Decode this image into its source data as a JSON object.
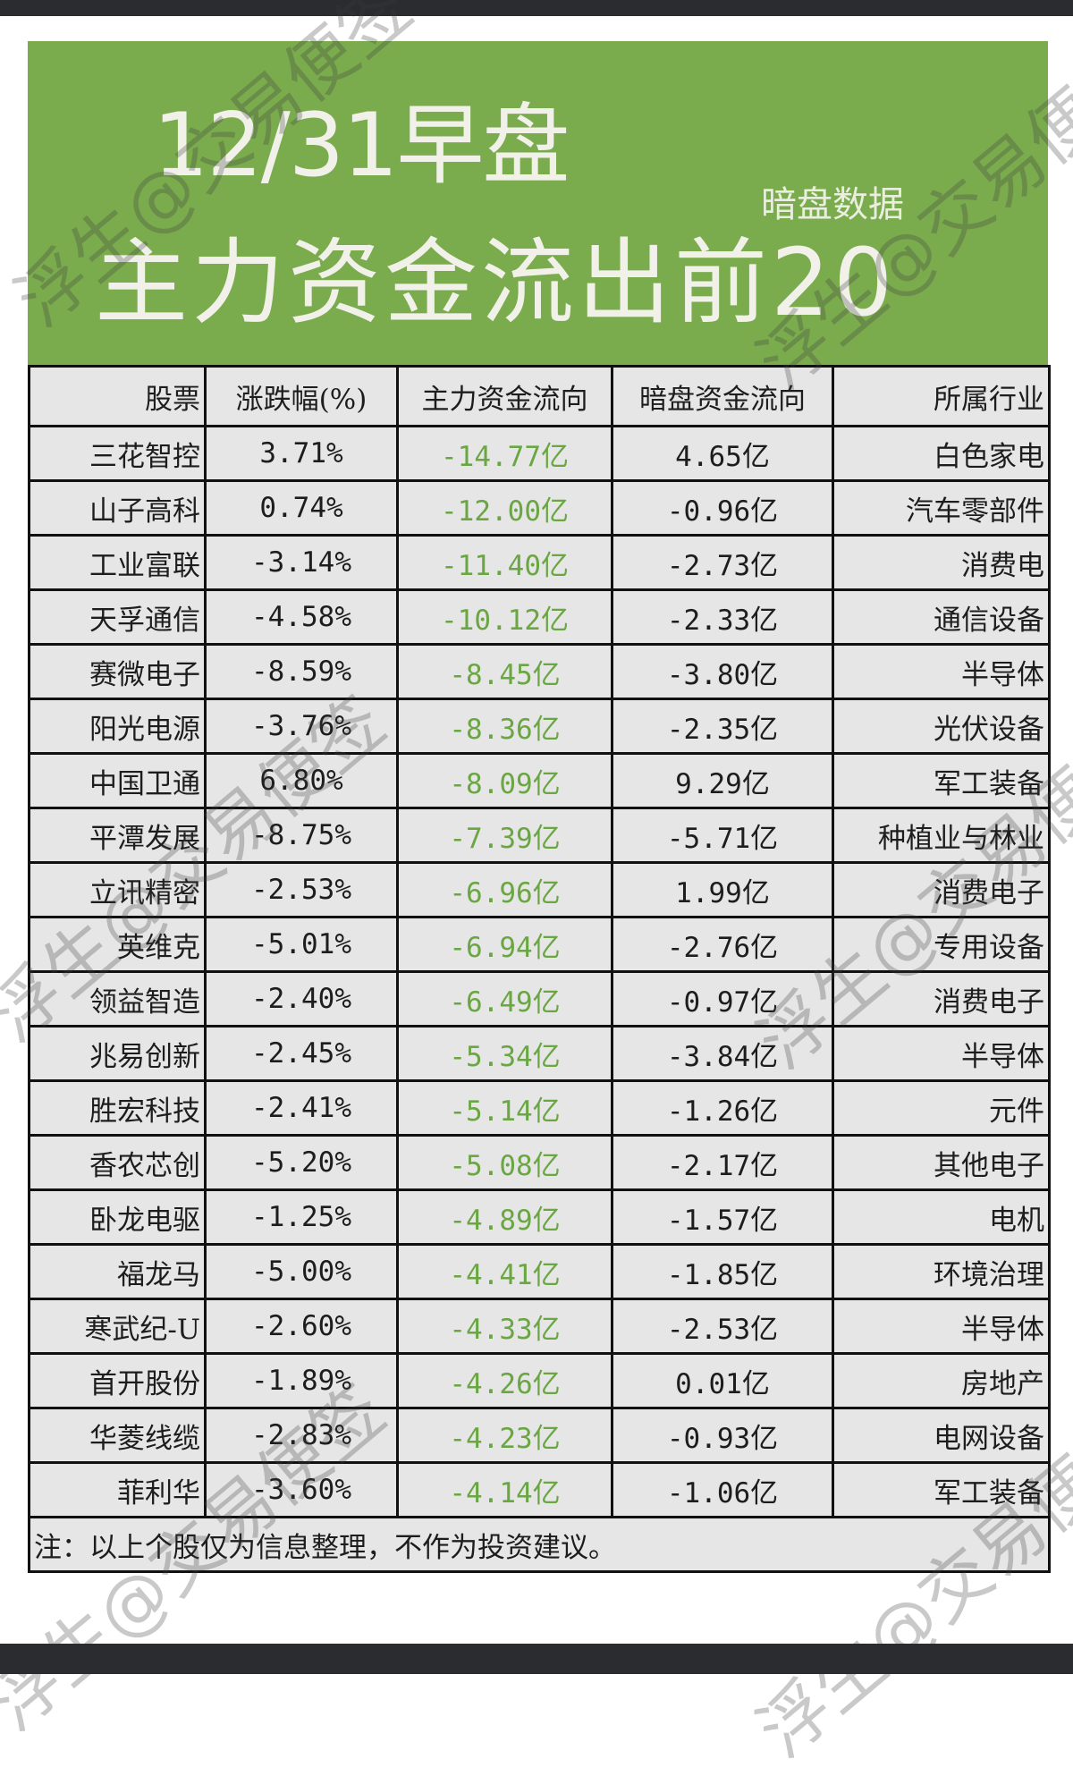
{
  "header": {
    "title_line1": "12/31早盘",
    "subtitle_tag": "暗盘数据",
    "title_line2": "主力资金流出前20"
  },
  "colors": {
    "banner_bg": "#7aac4e",
    "main_flow_text": "#6aa642",
    "cell_bg": "#e6e6e6",
    "frame_bar": "#2b2c30"
  },
  "table": {
    "columns": [
      "股票",
      "涨跌幅(%)",
      "主力资金流向",
      "暗盘资金流向",
      "所属行业"
    ],
    "rows": [
      {
        "name": "三花智控",
        "pct": "3.71%",
        "main": "-14.77亿",
        "dark": "4.65亿",
        "industry": "白色家电"
      },
      {
        "name": "山子高科",
        "pct": "0.74%",
        "main": "-12.00亿",
        "dark": "-0.96亿",
        "industry": "汽车零部件"
      },
      {
        "name": "工业富联",
        "pct": "-3.14%",
        "main": "-11.40亿",
        "dark": "-2.73亿",
        "industry": "消费电"
      },
      {
        "name": "天孚通信",
        "pct": "-4.58%",
        "main": "-10.12亿",
        "dark": "-2.33亿",
        "industry": "通信设备"
      },
      {
        "name": "赛微电子",
        "pct": "-8.59%",
        "main": "-8.45亿",
        "dark": "-3.80亿",
        "industry": "半导体"
      },
      {
        "name": "阳光电源",
        "pct": "-3.76%",
        "main": "-8.36亿",
        "dark": "-2.35亿",
        "industry": "光伏设备"
      },
      {
        "name": "中国卫通",
        "pct": "6.80%",
        "main": "-8.09亿",
        "dark": "9.29亿",
        "industry": "军工装备"
      },
      {
        "name": "平潭发展",
        "pct": "-8.75%",
        "main": "-7.39亿",
        "dark": "-5.71亿",
        "industry": "种植业与林业"
      },
      {
        "name": "立讯精密",
        "pct": "-2.53%",
        "main": "-6.96亿",
        "dark": "1.99亿",
        "industry": "消费电子"
      },
      {
        "name": "英维克",
        "pct": "-5.01%",
        "main": "-6.94亿",
        "dark": "-2.76亿",
        "industry": "专用设备"
      },
      {
        "name": "领益智造",
        "pct": "-2.40%",
        "main": "-6.49亿",
        "dark": "-0.97亿",
        "industry": "消费电子"
      },
      {
        "name": "兆易创新",
        "pct": "-2.45%",
        "main": "-5.34亿",
        "dark": "-3.84亿",
        "industry": "半导体"
      },
      {
        "name": "胜宏科技",
        "pct": "-2.41%",
        "main": "-5.14亿",
        "dark": "-1.26亿",
        "industry": "元件"
      },
      {
        "name": "香农芯创",
        "pct": "-5.20%",
        "main": "-5.08亿",
        "dark": "-2.17亿",
        "industry": "其他电子"
      },
      {
        "name": "卧龙电驱",
        "pct": "-1.25%",
        "main": "-4.89亿",
        "dark": "-1.57亿",
        "industry": "电机"
      },
      {
        "name": "福龙马",
        "pct": "-5.00%",
        "main": "-4.41亿",
        "dark": "-1.85亿",
        "industry": "环境治理"
      },
      {
        "name": "寒武纪-U",
        "pct": "-2.60%",
        "main": "-4.33亿",
        "dark": "-2.53亿",
        "industry": "半导体"
      },
      {
        "name": "首开股份",
        "pct": "-1.89%",
        "main": "-4.26亿",
        "dark": "0.01亿",
        "industry": "房地产"
      },
      {
        "name": "华菱线缆",
        "pct": "-2.83%",
        "main": "-4.23亿",
        "dark": "-0.93亿",
        "industry": "电网设备"
      },
      {
        "name": "菲利华",
        "pct": "-3.60%",
        "main": "-4.14亿",
        "dark": "-1.06亿",
        "industry": "军工装备"
      }
    ],
    "note": "注：以上个股仅为信息整理，不作为投资建议。"
  },
  "watermark": {
    "text": "浮生@交易便签"
  }
}
